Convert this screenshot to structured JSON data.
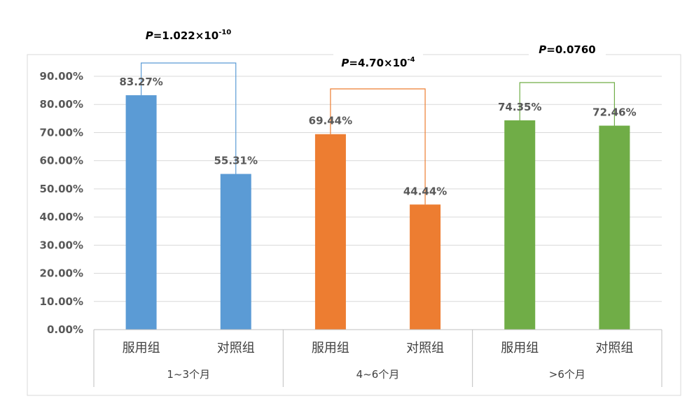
{
  "chart_data": {
    "type": "bar",
    "ylim": [
      0,
      90
    ],
    "yticks": [
      "0.00%",
      "10.00%",
      "20.00%",
      "30.00%",
      "40.00%",
      "50.00%",
      "60.00%",
      "70.00%",
      "80.00%",
      "90.00%"
    ],
    "groups": [
      {
        "label": "1~3个月",
        "color": "#5B9BD5",
        "bars": [
          {
            "category": "服用组",
            "value": 83.27,
            "label": "83.27%"
          },
          {
            "category": "对照组",
            "value": 55.31,
            "label": "55.31%"
          }
        ],
        "p_value": {
          "prefix": "P",
          "text": "=1.022×10",
          "exponent": "-10"
        }
      },
      {
        "label": "4~6个月",
        "color": "#ED7D31",
        "bars": [
          {
            "category": "服用组",
            "value": 69.44,
            "label": "69.44%"
          },
          {
            "category": "对照组",
            "value": 44.44,
            "label": "44.44%"
          }
        ],
        "p_value": {
          "prefix": "P",
          "text": "=4.70×10",
          "exponent": "-4"
        }
      },
      {
        "label": ">6个月",
        "color": "#70AD47",
        "bars": [
          {
            "category": "服用组",
            "value": 74.35,
            "label": "74.35%"
          },
          {
            "category": "对照组",
            "value": 72.46,
            "label": "72.46%"
          }
        ],
        "p_value": {
          "prefix": "P",
          "text": "=0.0760",
          "exponent": ""
        }
      }
    ]
  }
}
